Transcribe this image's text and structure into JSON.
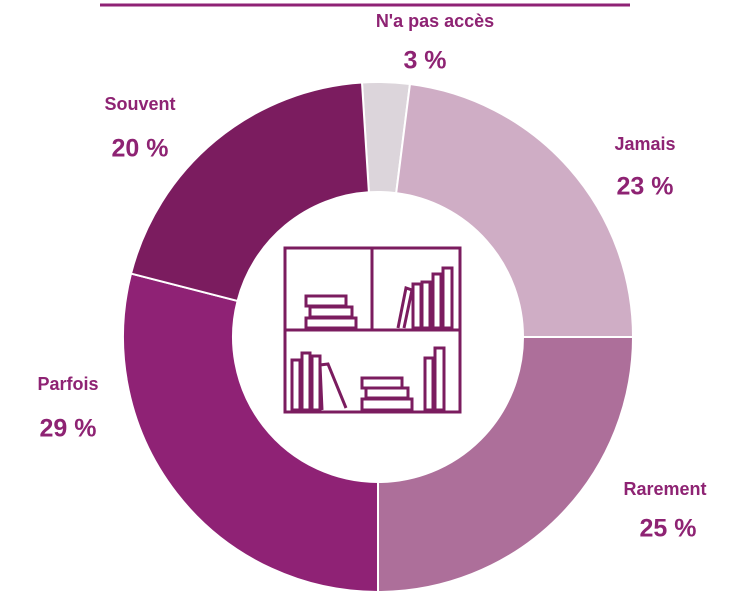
{
  "chart_data": {
    "type": "pie",
    "categories": [
      "N'a pas accès",
      "Jamais",
      "Rarement",
      "Parfois",
      "Souvent"
    ],
    "values": [
      3,
      23,
      25,
      29,
      20
    ],
    "value_labels": [
      "3 %",
      "23 %",
      "25 %",
      "29 %",
      "20 %"
    ],
    "colors": [
      "#dcd5db",
      "#cfadc5",
      "#ad6f9a",
      "#8f2275",
      "#7b1c5f"
    ]
  }
}
